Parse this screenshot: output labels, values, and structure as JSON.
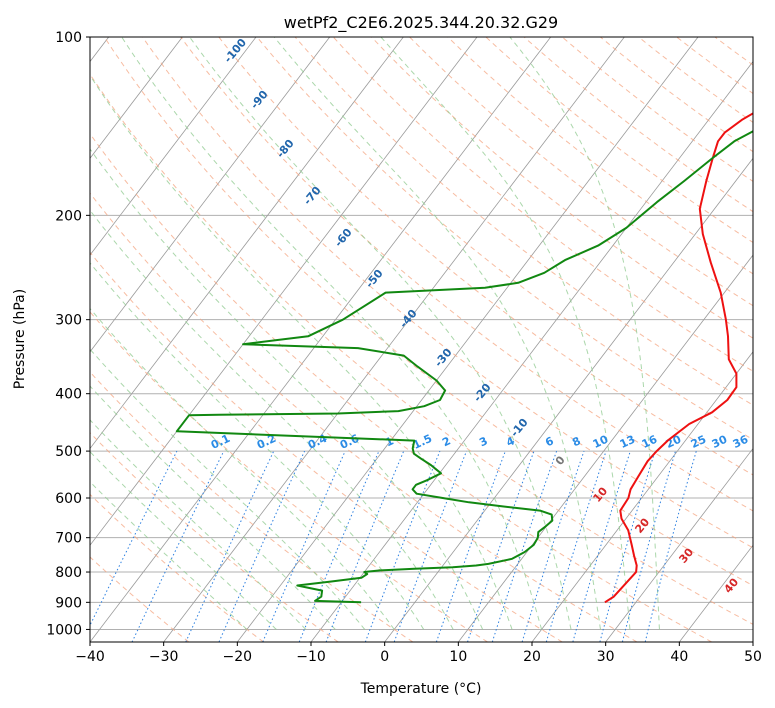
{
  "chart_data": {
    "type": "line",
    "title": "wetPf2_C2E6.2025.344.20.32.G29",
    "xlabel": "Temperature (°C)",
    "ylabel": "Pressure (hPa)",
    "xlim": [
      -40,
      50
    ],
    "ylim": [
      1050,
      100
    ],
    "x_ticks": [
      -40,
      -30,
      -20,
      -10,
      0,
      10,
      20,
      30,
      40,
      50
    ],
    "x_tick_labels": [
      "−40",
      "−30",
      "−20",
      "−10",
      "0",
      "10",
      "20",
      "30",
      "40",
      "50"
    ],
    "y_ticks": [
      1000,
      900,
      800,
      700,
      600,
      500,
      400,
      300,
      200,
      100
    ],
    "y_tick_labels": [
      "1000",
      "900",
      "800",
      "700",
      "600",
      "500",
      "400",
      "300",
      "200",
      "100"
    ],
    "series": [
      {
        "name": "temperature",
        "color": "#ee1111",
        "points": [
          [
            25.8,
            900
          ],
          [
            26.4,
            880
          ],
          [
            26.6,
            850
          ],
          [
            26.9,
            800
          ],
          [
            26.3,
            780
          ],
          [
            24.9,
            750
          ],
          [
            23.5,
            720
          ],
          [
            21.5,
            680
          ],
          [
            19.4,
            650
          ],
          [
            18.4,
            630
          ],
          [
            18.2,
            600
          ],
          [
            17.6,
            580
          ],
          [
            17.3,
            550
          ],
          [
            17.0,
            520
          ],
          [
            17.2,
            500
          ],
          [
            17.6,
            480
          ],
          [
            18.8,
            450
          ],
          [
            20.7,
            430
          ],
          [
            21.5,
            410
          ],
          [
            21.4,
            390
          ],
          [
            20.0,
            370
          ],
          [
            17.5,
            350
          ],
          [
            15.0,
            320
          ],
          [
            13.0,
            300
          ],
          [
            9.5,
            270
          ],
          [
            5.0,
            240
          ],
          [
            1.0,
            215
          ],
          [
            -2.0,
            195
          ],
          [
            -4.0,
            175
          ],
          [
            -5.5,
            160
          ],
          [
            -6.5,
            150
          ],
          [
            -6.5,
            145
          ],
          [
            -5.5,
            138
          ],
          [
            -3.5,
            130
          ],
          [
            -1.5,
            122
          ],
          [
            -0.5,
            115
          ],
          [
            0.0,
            108
          ],
          [
            0.0,
            100
          ]
        ]
      },
      {
        "name": "dewpoint",
        "color": "#118811",
        "points": [
          [
            -7.3,
            900
          ],
          [
            -13.7,
            895
          ],
          [
            -13.3,
            880
          ],
          [
            -13.8,
            860
          ],
          [
            -17.7,
            843
          ],
          [
            -13.5,
            830
          ],
          [
            -9.8,
            818
          ],
          [
            -9.4,
            806
          ],
          [
            -10.0,
            800
          ],
          [
            -8.0,
            795
          ],
          [
            -3.5,
            790
          ],
          [
            1.5,
            785
          ],
          [
            4.5,
            780
          ],
          [
            6.0,
            775
          ],
          [
            8.7,
            760
          ],
          [
            9.7,
            740
          ],
          [
            10.2,
            720
          ],
          [
            10.0,
            700
          ],
          [
            9.5,
            685
          ],
          [
            9.9,
            670
          ],
          [
            10.2,
            655
          ],
          [
            9.5,
            640
          ],
          [
            7.5,
            630
          ],
          [
            2.0,
            620
          ],
          [
            -3.0,
            610
          ],
          [
            -7.0,
            600
          ],
          [
            -11.0,
            590
          ],
          [
            -12.0,
            580
          ],
          [
            -12.0,
            570
          ],
          [
            -11.0,
            560
          ],
          [
            -9.8,
            545
          ],
          [
            -12.0,
            528
          ],
          [
            -14.0,
            515
          ],
          [
            -15.5,
            505
          ],
          [
            -16.2,
            495
          ],
          [
            -16.8,
            480
          ],
          [
            -50.0,
            463
          ],
          [
            -50.0,
            435
          ],
          [
            -46.0,
            434
          ],
          [
            -30.0,
            432
          ],
          [
            -22.0,
            428
          ],
          [
            -19.0,
            420
          ],
          [
            -17.5,
            410
          ],
          [
            -17.8,
            395
          ],
          [
            -20.0,
            380
          ],
          [
            -24.0,
            360
          ],
          [
            -27.0,
            345
          ],
          [
            -34.0,
            335
          ],
          [
            -50.0,
            330
          ],
          [
            -42.0,
            320
          ],
          [
            -39.0,
            300
          ],
          [
            -36.0,
            270
          ],
          [
            -23.0,
            265
          ],
          [
            -19.0,
            260
          ],
          [
            -16.5,
            250
          ],
          [
            -15.0,
            238
          ],
          [
            -12.0,
            225
          ],
          [
            -10.0,
            210
          ],
          [
            -8.5,
            190
          ],
          [
            -7.0,
            175
          ],
          [
            -5.5,
            160
          ],
          [
            -4.3,
            150
          ],
          [
            -3.0,
            145
          ],
          [
            -1.6,
            140
          ],
          [
            -0.5,
            130
          ],
          [
            -0.5,
            122
          ],
          [
            -0.6,
            115
          ],
          [
            0.0,
            110
          ],
          [
            1.0,
            105
          ],
          [
            1.5,
            102
          ],
          [
            2.0,
            100
          ]
        ]
      }
    ],
    "isotherm_step": 10,
    "dry_adiabat_labels": [
      "-100",
      "-90",
      "-80",
      "-70",
      "-60",
      "-50",
      "-40",
      "-30",
      "-20",
      "-10",
      "0",
      "10",
      "20",
      "30",
      "40"
    ],
    "mixing_ratio_labels": [
      "0.1",
      "0.2",
      "0.4",
      "0.6",
      "1",
      "1.5",
      "2",
      "3",
      "4",
      "6",
      "8",
      "10",
      "13",
      "16",
      "20",
      "25",
      "30",
      "36"
    ],
    "mixing_ratio_values": [
      0.1,
      0.2,
      0.4,
      0.6,
      1,
      1.5,
      2,
      3,
      4,
      6,
      8,
      10,
      13,
      16,
      20,
      25,
      30,
      36
    ],
    "colors": {
      "temperature": "#ee1111",
      "dewpoint": "#118811",
      "isotherm": "#9a9a9a",
      "isobar": "#b0b0b0",
      "dry_adiabat": "#f4a582",
      "moist_adiabat": "#8fc98f",
      "mixing_ratio": "#2b7fe0",
      "label_cold": "#2166ac",
      "label_warm": "#d62728"
    }
  }
}
